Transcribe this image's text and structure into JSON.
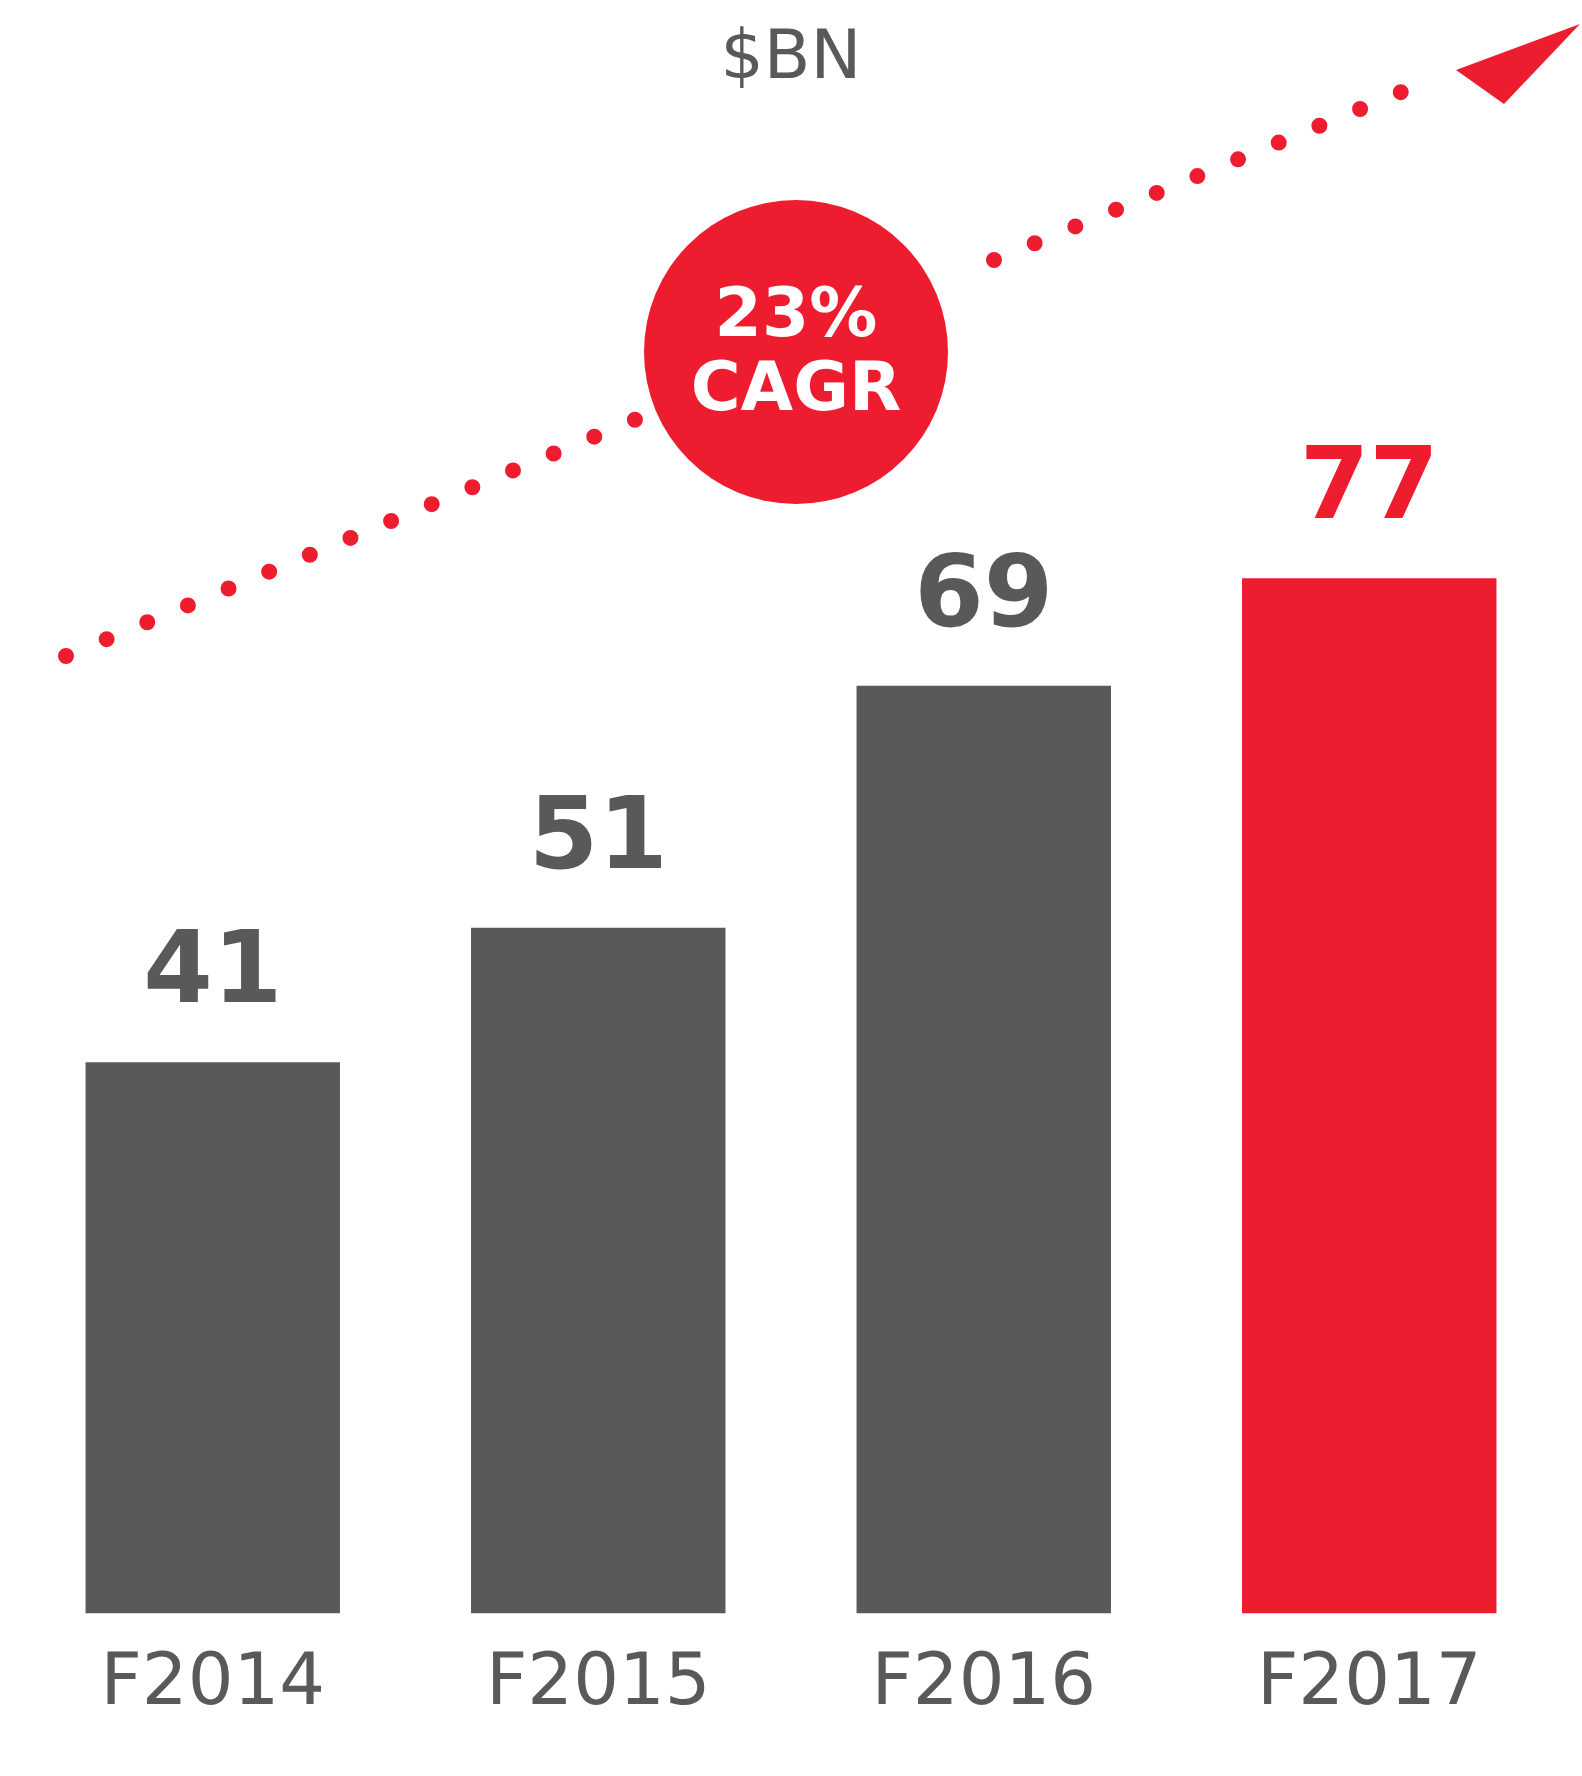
{
  "chart_data": {
    "type": "bar",
    "title": "$BN",
    "categories": [
      "F2014",
      "F2015",
      "F2016",
      "F2017"
    ],
    "values": [
      41,
      51,
      69,
      77
    ],
    "colors": [
      "#58595b",
      "#58595b",
      "#58595b",
      "#ed1c2e"
    ],
    "data_labels": true,
    "grid": false,
    "legend": false,
    "tick_labels": "x",
    "annotations": [
      "23% CAGR"
    ]
  }
}
